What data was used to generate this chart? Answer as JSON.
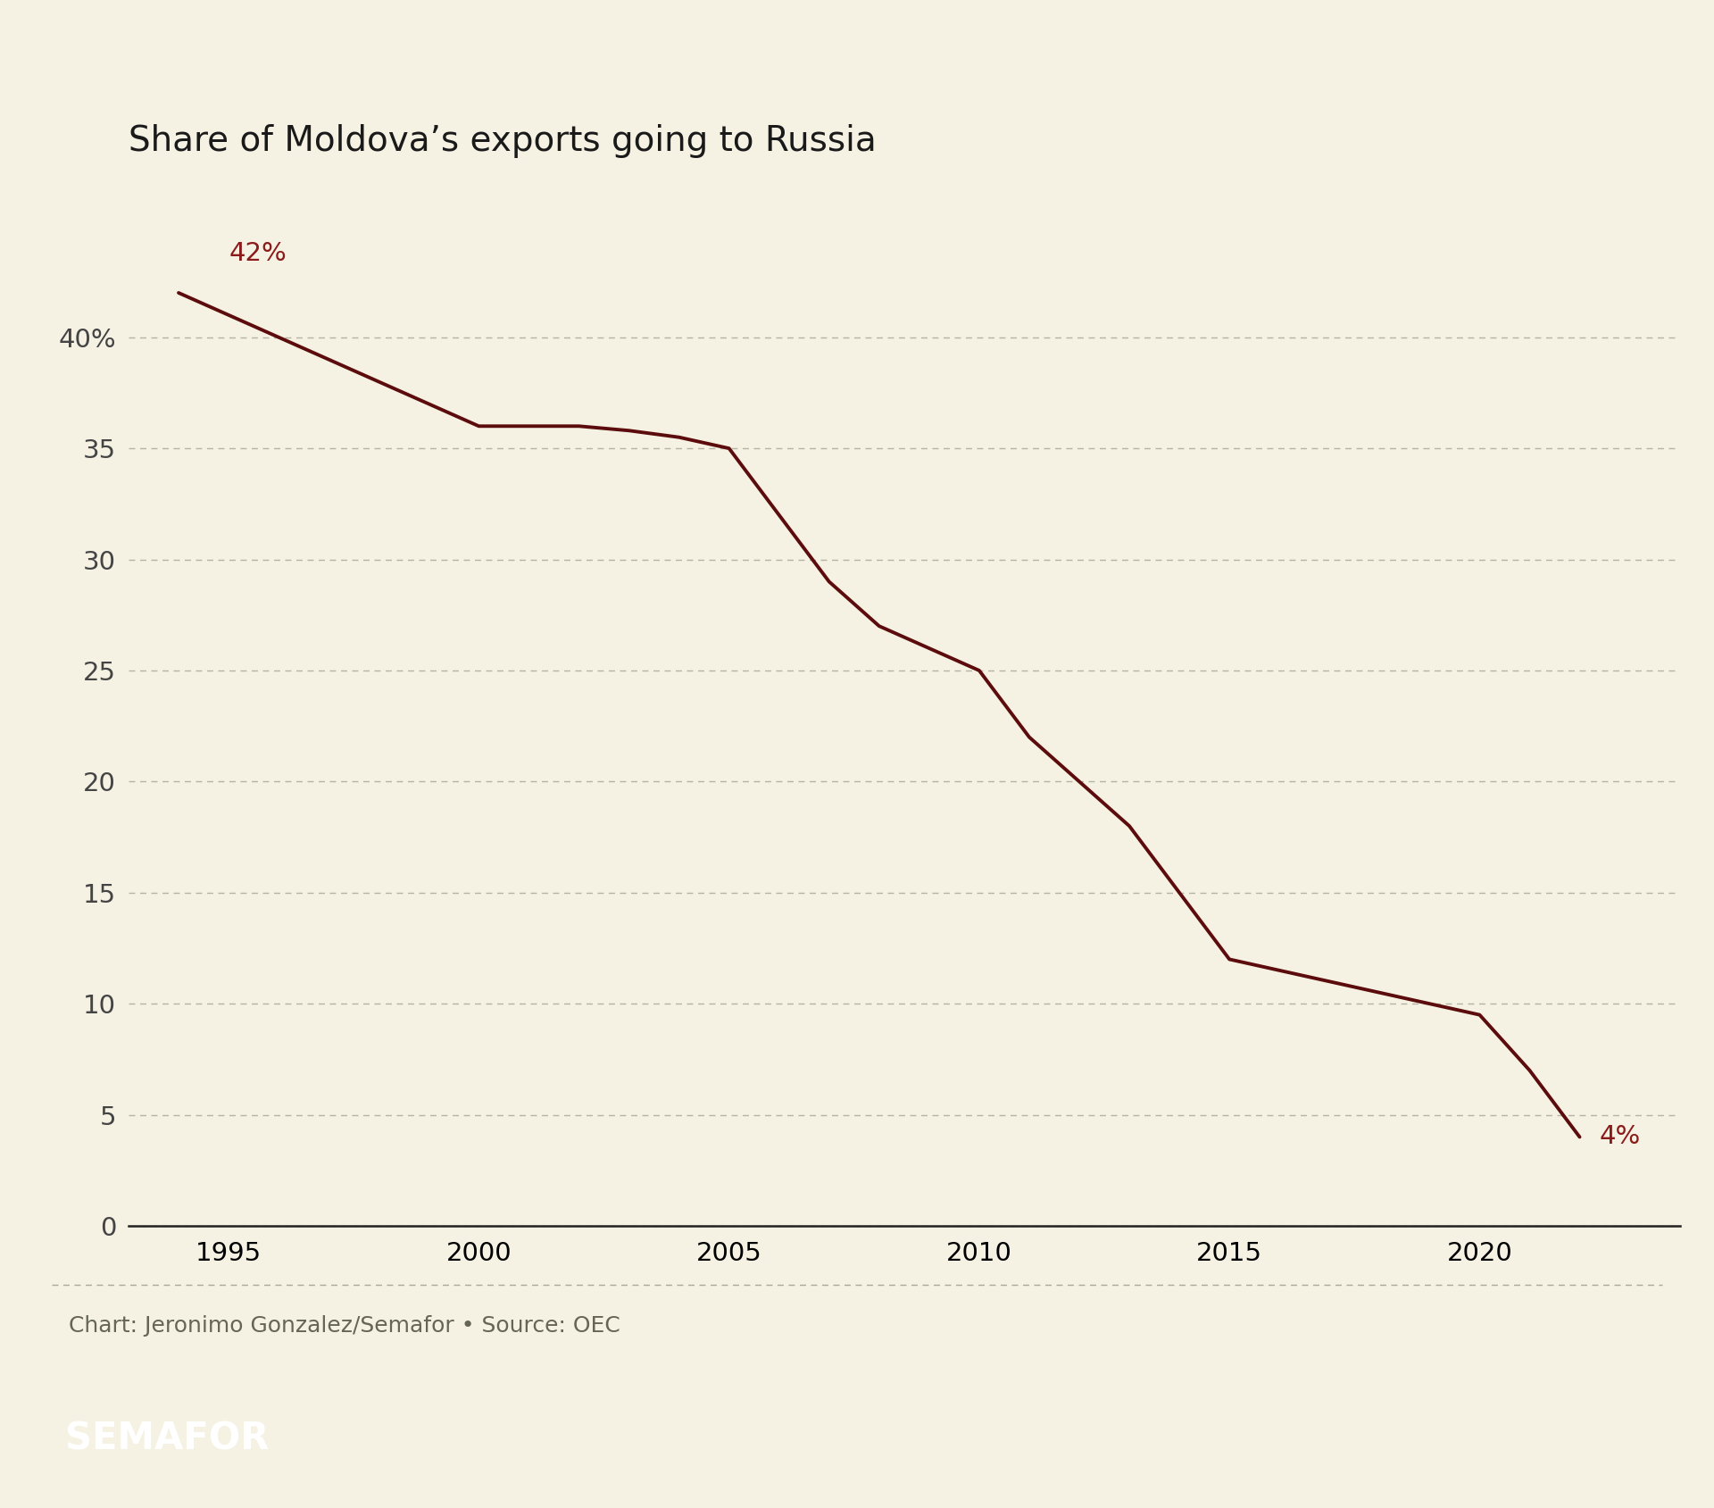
{
  "title": "Share of Moldova’s exports going to Russia",
  "years": [
    1994,
    1995,
    1996,
    1997,
    1998,
    1999,
    2000,
    2001,
    2002,
    2003,
    2004,
    2005,
    2006,
    2007,
    2008,
    2009,
    2010,
    2011,
    2012,
    2013,
    2014,
    2015,
    2016,
    2017,
    2018,
    2019,
    2020,
    2021,
    2022
  ],
  "values": [
    42,
    41,
    40,
    39,
    38,
    37,
    36,
    36,
    36,
    35.8,
    35.5,
    35,
    32,
    29,
    27,
    26,
    25,
    22,
    20,
    18,
    15,
    12,
    11.5,
    11,
    10.5,
    10,
    9.5,
    7,
    4
  ],
  "line_color": "#5c0c0c",
  "line_width": 2.8,
  "bg_color": "#f5f2e3",
  "annotation_start_text": "42%",
  "annotation_start_color": "#8b1a1a",
  "annotation_end_text": "4%",
  "annotation_end_color": "#8b1a1a",
  "yticks": [
    0,
    5,
    10,
    15,
    20,
    25,
    30,
    35,
    40
  ],
  "ytick_labels": [
    "0",
    "5",
    "10",
    "15",
    "20",
    "25",
    "30",
    "35",
    "40%"
  ],
  "xtick_labels": [
    "1995",
    "2000",
    "2005",
    "2010",
    "2015",
    "2020"
  ],
  "xtick_values": [
    1995,
    2000,
    2005,
    2010,
    2015,
    2020
  ],
  "ylim": [
    -1.5,
    45
  ],
  "xlim": [
    1993,
    2024
  ],
  "grid_color": "#aaa898",
  "axis_color": "#222222",
  "tick_color": "#444444",
  "title_fontsize": 28,
  "tick_fontsize": 21,
  "annotation_fontsize": 21,
  "footer_text": "Chart: Jeronimo Gonzalez/Semafor • Source: OEC",
  "footer_fontsize": 18,
  "semafor_text": "SEMAFOR",
  "semafor_fontsize": 30
}
